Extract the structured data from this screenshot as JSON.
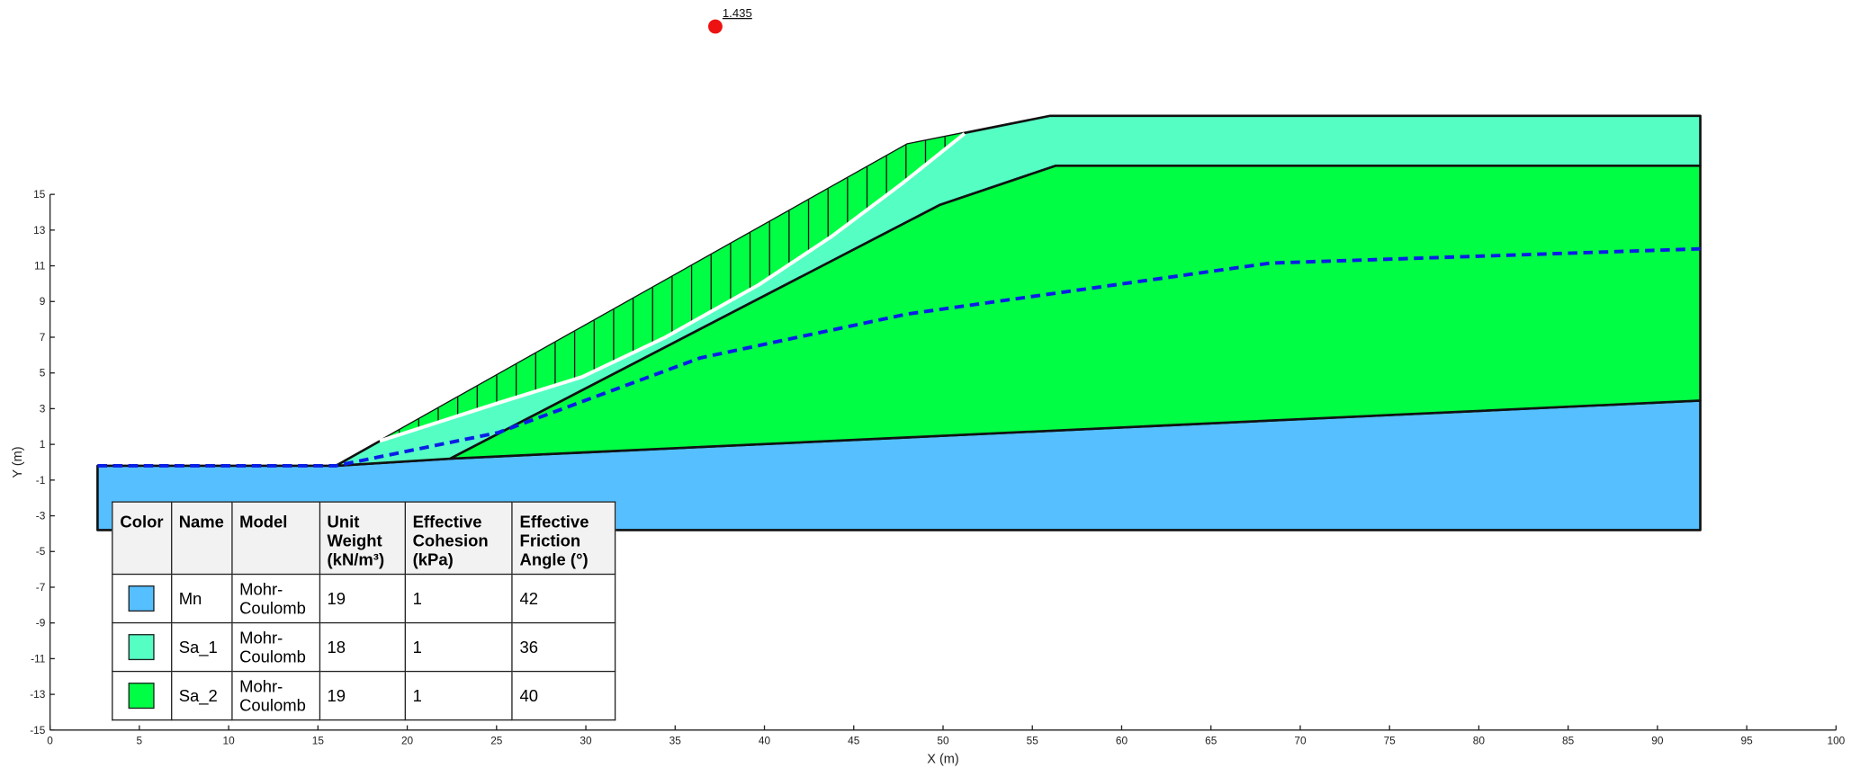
{
  "chart_data": {
    "type": "slope",
    "xlabel": "X (m)",
    "ylabel": "Y (m)",
    "xlim": [
      0,
      100
    ],
    "ylim": [
      -15,
      15
    ],
    "xticks": [
      0,
      5,
      10,
      15,
      20,
      25,
      30,
      35,
      40,
      45,
      50,
      55,
      60,
      65,
      70,
      75,
      80,
      85,
      90,
      95,
      100
    ],
    "yticks": [
      -15,
      -13,
      -11,
      -9,
      -7,
      -5,
      -3,
      -1,
      1,
      3,
      5,
      7,
      9,
      11,
      13,
      15
    ],
    "regions": [
      {
        "color": "#55bfff",
        "x": [
          2.66,
          16.0,
          22.4,
          92.4,
          92.4,
          2.66
        ],
        "y": [
          -0.2,
          -0.2,
          0.2,
          3.45,
          -3.8,
          -3.8
        ]
      },
      {
        "color": "#55ffc4",
        "x": [
          16.0,
          48.0,
          56.0,
          92.4,
          92.4,
          56.3,
          49.8,
          22.4
        ],
        "y": [
          -0.2,
          17.8,
          19.4,
          19.4,
          16.6,
          16.6,
          14.4,
          0.2
        ]
      },
      {
        "color": "#00ff44",
        "x": [
          22.4,
          49.8,
          56.3,
          92.4,
          92.4
        ],
        "y": [
          0.2,
          14.4,
          16.6,
          16.6,
          3.45
        ]
      }
    ],
    "slip_surface": {
      "color": "#ffffff",
      "x": [
        18.46,
        25.1,
        29.8,
        34.4,
        39.7,
        43.7,
        47.7,
        51.2
      ],
      "y": [
        1.19,
        3.32,
        4.78,
        6.97,
        9.95,
        12.6,
        15.6,
        18.4
      ]
    },
    "water_table": {
      "color": "#0a1ee6",
      "x": [
        2.66,
        16.0,
        25.1,
        36.4,
        48.0,
        68.3,
        92.4
      ],
      "y": [
        -0.2,
        -0.2,
        1.66,
        5.84,
        8.3,
        11.15,
        11.95
      ]
    },
    "fos": {
      "value": 1.435,
      "x": 37.25,
      "y": 24.4,
      "color": "#ee1111"
    }
  },
  "materials_table": {
    "headers": [
      "Color",
      "Name",
      "Model",
      "Unit Weight (kN/m³)",
      "Effective Cohesion (kPa)",
      "Effective Friction Angle (°)"
    ],
    "rows": [
      [
        "Mn",
        "Mohr-Coulomb",
        19,
        1,
        42
      ],
      [
        "Sa_1",
        "Mohr-Coulomb",
        18,
        1,
        36
      ],
      [
        "Sa_2",
        "Mohr-Coulomb",
        19,
        1,
        40
      ]
    ]
  }
}
